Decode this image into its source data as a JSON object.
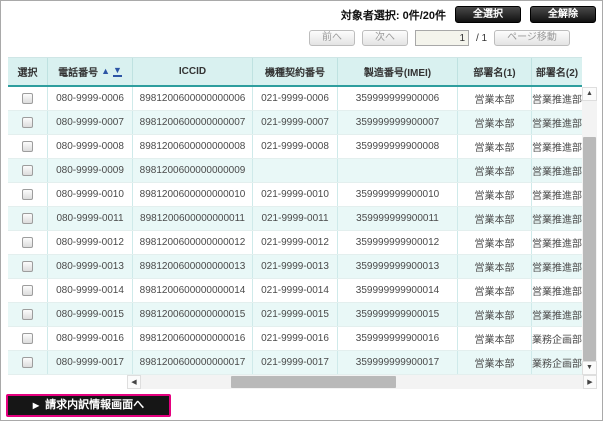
{
  "toolbar": {
    "selection_label": "対象者選択:",
    "selection_count": "0件/20件",
    "select_all_label": "全選択",
    "clear_all_label": "全解除"
  },
  "pagination": {
    "prev_label": "前へ",
    "next_label": "次へ",
    "page_value": "1",
    "page_total": "/ 1",
    "goto_label": "ページ移動"
  },
  "icons": {
    "sort_asc": "▲",
    "sort_desc": "▼",
    "scroll_up": "▲",
    "scroll_down": "▼",
    "scroll_left": "◀",
    "scroll_right": "▶",
    "billing_arrow": "▶"
  },
  "table": {
    "columns": [
      "選択",
      "電話番号",
      "ICCID",
      "機種契約番号",
      "製造番号(IMEI)",
      "部署名(1)",
      "部署名(2)"
    ],
    "sorted_column": "電話番号",
    "rows": [
      {
        "phone": "080-9999-0006",
        "iccid": "8981200600000000006",
        "contract": "021-9999-0006",
        "imei": "359999999900006",
        "dept1": "営業本部",
        "dept2": "営業推進部"
      },
      {
        "phone": "080-9999-0007",
        "iccid": "8981200600000000007",
        "contract": "021-9999-0007",
        "imei": "359999999900007",
        "dept1": "営業本部",
        "dept2": "営業推進部"
      },
      {
        "phone": "080-9999-0008",
        "iccid": "8981200600000000008",
        "contract": "021-9999-0008",
        "imei": "359999999900008",
        "dept1": "営業本部",
        "dept2": "営業推進部"
      },
      {
        "phone": "080-9999-0009",
        "iccid": "8981200600000000009",
        "contract": "",
        "imei": "",
        "dept1": "営業本部",
        "dept2": "営業推進部"
      },
      {
        "phone": "080-9999-0010",
        "iccid": "8981200600000000010",
        "contract": "021-9999-0010",
        "imei": "359999999900010",
        "dept1": "営業本部",
        "dept2": "営業推進部"
      },
      {
        "phone": "080-9999-0011",
        "iccid": "8981200600000000011",
        "contract": "021-9999-0011",
        "imei": "359999999900011",
        "dept1": "営業本部",
        "dept2": "営業推進部"
      },
      {
        "phone": "080-9999-0012",
        "iccid": "8981200600000000012",
        "contract": "021-9999-0012",
        "imei": "359999999900012",
        "dept1": "営業本部",
        "dept2": "営業推進部"
      },
      {
        "phone": "080-9999-0013",
        "iccid": "8981200600000000013",
        "contract": "021-9999-0013",
        "imei": "359999999900013",
        "dept1": "営業本部",
        "dept2": "営業推進部"
      },
      {
        "phone": "080-9999-0014",
        "iccid": "8981200600000000014",
        "contract": "021-9999-0014",
        "imei": "359999999900014",
        "dept1": "営業本部",
        "dept2": "営業推進部"
      },
      {
        "phone": "080-9999-0015",
        "iccid": "8981200600000000015",
        "contract": "021-9999-0015",
        "imei": "359999999900015",
        "dept1": "営業本部",
        "dept2": "営業推進部"
      },
      {
        "phone": "080-9999-0016",
        "iccid": "8981200600000000016",
        "contract": "021-9999-0016",
        "imei": "359999999900016",
        "dept1": "営業本部",
        "dept2": "業務企画部"
      },
      {
        "phone": "080-9999-0017",
        "iccid": "8981200600000000017",
        "contract": "021-9999-0017",
        "imei": "359999999900017",
        "dept1": "営業本部",
        "dept2": "業務企画部"
      }
    ]
  },
  "footer": {
    "billing_button_label": "請求内訳情報画面へ"
  },
  "colors": {
    "header_bg": "#d9f1f0",
    "header_border": "#2e9e9e",
    "row_alt_bg": "#e9f8f7",
    "button_black": "#161616",
    "billing_border": "#e5007f",
    "sort_icon": "#2d55a5"
  }
}
